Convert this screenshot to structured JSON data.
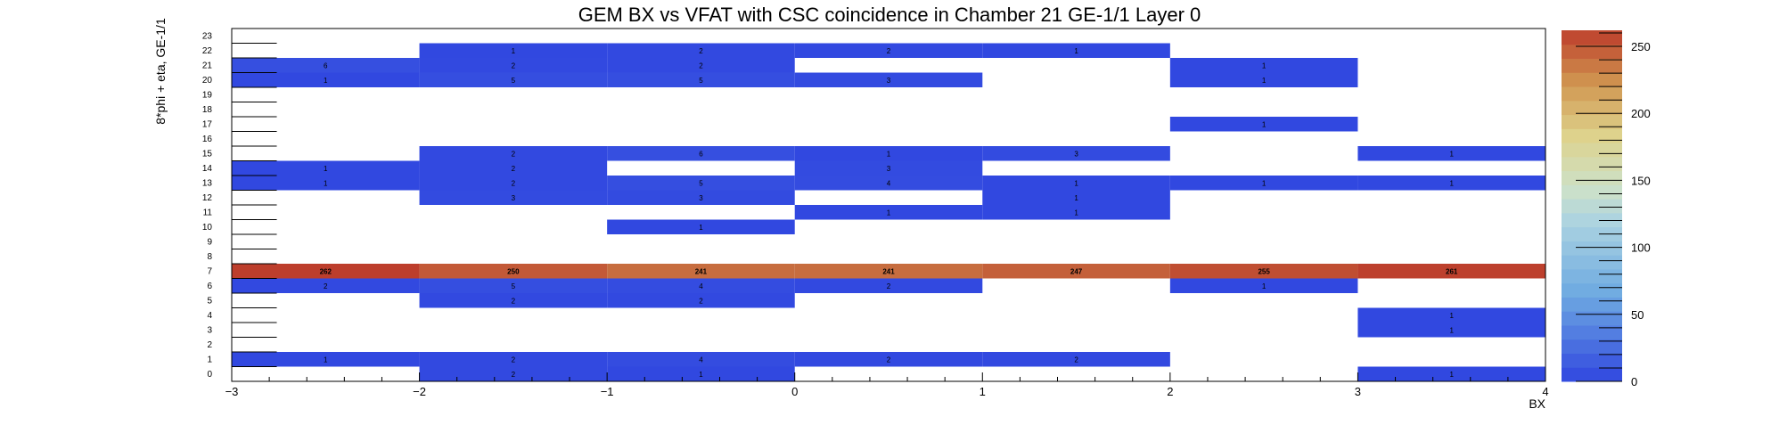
{
  "chart_data": {
    "type": "heatmap",
    "title": "GEM BX vs VFAT with CSC coincidence in Chamber 21 GE-1/1 Layer 0",
    "xlabel": "BX",
    "ylabel": "8*phi + eta, GE-1/1",
    "xlim": [
      -3,
      4
    ],
    "ylim": [
      0,
      24
    ],
    "x_bins": [
      -3,
      -2,
      -1,
      0,
      1,
      2,
      3
    ],
    "x_tick_labels": [
      "−3",
      "−2",
      "−1",
      "0",
      "1",
      "2",
      "3",
      "4"
    ],
    "y_tick_labels": [
      "0",
      "1",
      "2",
      "3",
      "4",
      "5",
      "6",
      "7",
      "8",
      "9",
      "10",
      "11",
      "12",
      "13",
      "14",
      "15",
      "16",
      "17",
      "18",
      "19",
      "20",
      "21",
      "22",
      "23"
    ],
    "colorbar": {
      "min": 0,
      "max": 262,
      "ticks": [
        "0",
        "50",
        "100",
        "150",
        "200",
        "250"
      ]
    },
    "colors": {
      "low": "#3046e0",
      "mid": "#c04f2e",
      "high": "#bd3e2c"
    },
    "cells": [
      {
        "x": -2,
        "y": 0,
        "value": 2
      },
      {
        "x": -1,
        "y": 0,
        "value": 1
      },
      {
        "x": 3,
        "y": 0,
        "value": 1
      },
      {
        "x": -3,
        "y": 1,
        "value": 1
      },
      {
        "x": -2,
        "y": 1,
        "value": 2
      },
      {
        "x": -1,
        "y": 1,
        "value": 4
      },
      {
        "x": 0,
        "y": 1,
        "value": 2
      },
      {
        "x": 1,
        "y": 1,
        "value": 2
      },
      {
        "x": 3,
        "y": 3,
        "value": 1
      },
      {
        "x": 3,
        "y": 4,
        "value": 1
      },
      {
        "x": -2,
        "y": 5,
        "value": 2
      },
      {
        "x": -1,
        "y": 5,
        "value": 2
      },
      {
        "x": -3,
        "y": 6,
        "value": 2
      },
      {
        "x": -2,
        "y": 6,
        "value": 5
      },
      {
        "x": -1,
        "y": 6,
        "value": 4
      },
      {
        "x": 0,
        "y": 6,
        "value": 2
      },
      {
        "x": 2,
        "y": 6,
        "value": 1
      },
      {
        "x": -3,
        "y": 7,
        "value": 262
      },
      {
        "x": -2,
        "y": 7,
        "value": 250
      },
      {
        "x": -1,
        "y": 7,
        "value": 241
      },
      {
        "x": 0,
        "y": 7,
        "value": 241
      },
      {
        "x": 1,
        "y": 7,
        "value": 247
      },
      {
        "x": 2,
        "y": 7,
        "value": 255
      },
      {
        "x": 3,
        "y": 7,
        "value": 261
      },
      {
        "x": -1,
        "y": 10,
        "value": 1
      },
      {
        "x": 0,
        "y": 11,
        "value": 1
      },
      {
        "x": 1,
        "y": 11,
        "value": 1
      },
      {
        "x": -2,
        "y": 12,
        "value": 3
      },
      {
        "x": -1,
        "y": 12,
        "value": 3
      },
      {
        "x": 1,
        "y": 12,
        "value": 1
      },
      {
        "x": -3,
        "y": 13,
        "value": 1
      },
      {
        "x": -2,
        "y": 13,
        "value": 2
      },
      {
        "x": -1,
        "y": 13,
        "value": 5
      },
      {
        "x": 0,
        "y": 13,
        "value": 4
      },
      {
        "x": 1,
        "y": 13,
        "value": 1
      },
      {
        "x": 2,
        "y": 13,
        "value": 1
      },
      {
        "x": 3,
        "y": 13,
        "value": 1
      },
      {
        "x": -3,
        "y": 14,
        "value": 1
      },
      {
        "x": -2,
        "y": 14,
        "value": 2
      },
      {
        "x": 0,
        "y": 14,
        "value": 3
      },
      {
        "x": -2,
        "y": 15,
        "value": 2
      },
      {
        "x": -1,
        "y": 15,
        "value": 6
      },
      {
        "x": 0,
        "y": 15,
        "value": 1
      },
      {
        "x": 1,
        "y": 15,
        "value": 3
      },
      {
        "x": 3,
        "y": 15,
        "value": 1
      },
      {
        "x": 2,
        "y": 17,
        "value": 1
      },
      {
        "x": -3,
        "y": 20,
        "value": 1
      },
      {
        "x": -2,
        "y": 20,
        "value": 5
      },
      {
        "x": -1,
        "y": 20,
        "value": 5
      },
      {
        "x": 0,
        "y": 20,
        "value": 3
      },
      {
        "x": 2,
        "y": 20,
        "value": 1
      },
      {
        "x": -3,
        "y": 21,
        "value": 6
      },
      {
        "x": -2,
        "y": 21,
        "value": 2
      },
      {
        "x": -1,
        "y": 21,
        "value": 2
      },
      {
        "x": 2,
        "y": 21,
        "value": 1
      },
      {
        "x": -2,
        "y": 22,
        "value": 1
      },
      {
        "x": -1,
        "y": 22,
        "value": 2
      },
      {
        "x": 0,
        "y": 22,
        "value": 2
      },
      {
        "x": 1,
        "y": 22,
        "value": 1
      }
    ],
    "grid": false,
    "legend": "none"
  }
}
